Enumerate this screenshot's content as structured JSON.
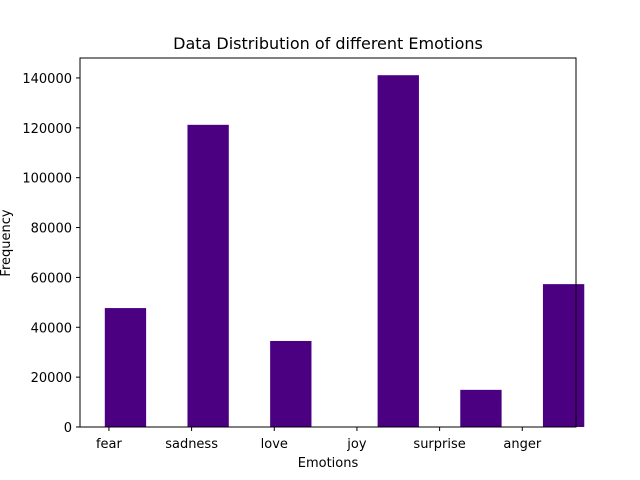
{
  "chart_data": {
    "type": "bar",
    "title": "Data Distribution of different Emotions",
    "xlabel": "Emotions",
    "ylabel": "Frequency",
    "categories": [
      "fear",
      "sadness",
      "love",
      "joy",
      "surprise",
      "anger"
    ],
    "x_positions": [
      0,
      1,
      2,
      3,
      4,
      5
    ],
    "bar_positions": [
      0.2,
      1.2,
      2.2,
      3.5,
      4.5,
      5.5
    ],
    "values": [
      47700,
      121200,
      34500,
      141100,
      14900,
      57300
    ],
    "xlim": [
      -0.35,
      5.65
    ],
    "ylim": [
      0,
      148000
    ],
    "yticks": [
      0,
      20000,
      40000,
      60000,
      80000,
      100000,
      120000,
      140000
    ],
    "ytick_labels": [
      "0",
      "20000",
      "40000",
      "60000",
      "80000",
      "100000",
      "120000",
      "140000"
    ],
    "bar_color": "#4b0082",
    "grid": false
  }
}
